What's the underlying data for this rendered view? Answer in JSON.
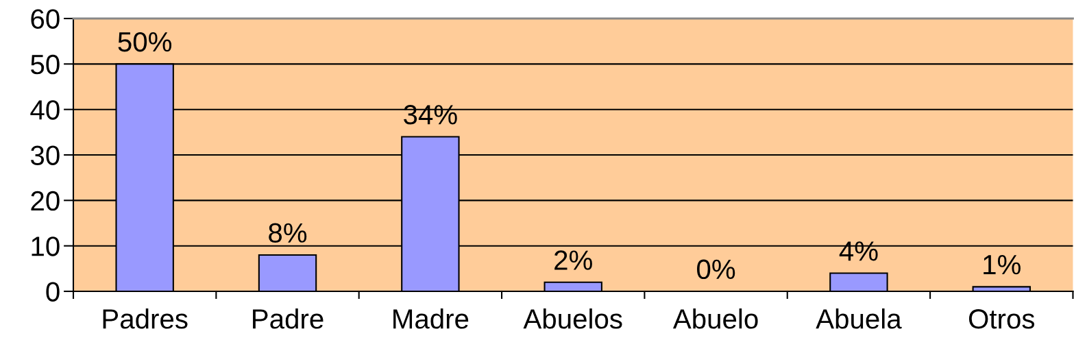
{
  "chart_data": {
    "type": "bar",
    "categories": [
      "Padres",
      "Padre",
      "Madre",
      "Abuelos",
      "Abuelo",
      "Abuela",
      "Otros"
    ],
    "series": [
      {
        "color": "#9999ff",
        "values": [
          50,
          8,
          34,
          2,
          0,
          4,
          1
        ],
        "value_labels": [
          "50%",
          "8%",
          "34%",
          "2%",
          "0%",
          "4%",
          "1%"
        ]
      }
    ],
    "ylim": [
      0,
      60
    ],
    "yticks": [
      0,
      10,
      20,
      30,
      40,
      50,
      60
    ],
    "grid": "y",
    "legend": false
  }
}
